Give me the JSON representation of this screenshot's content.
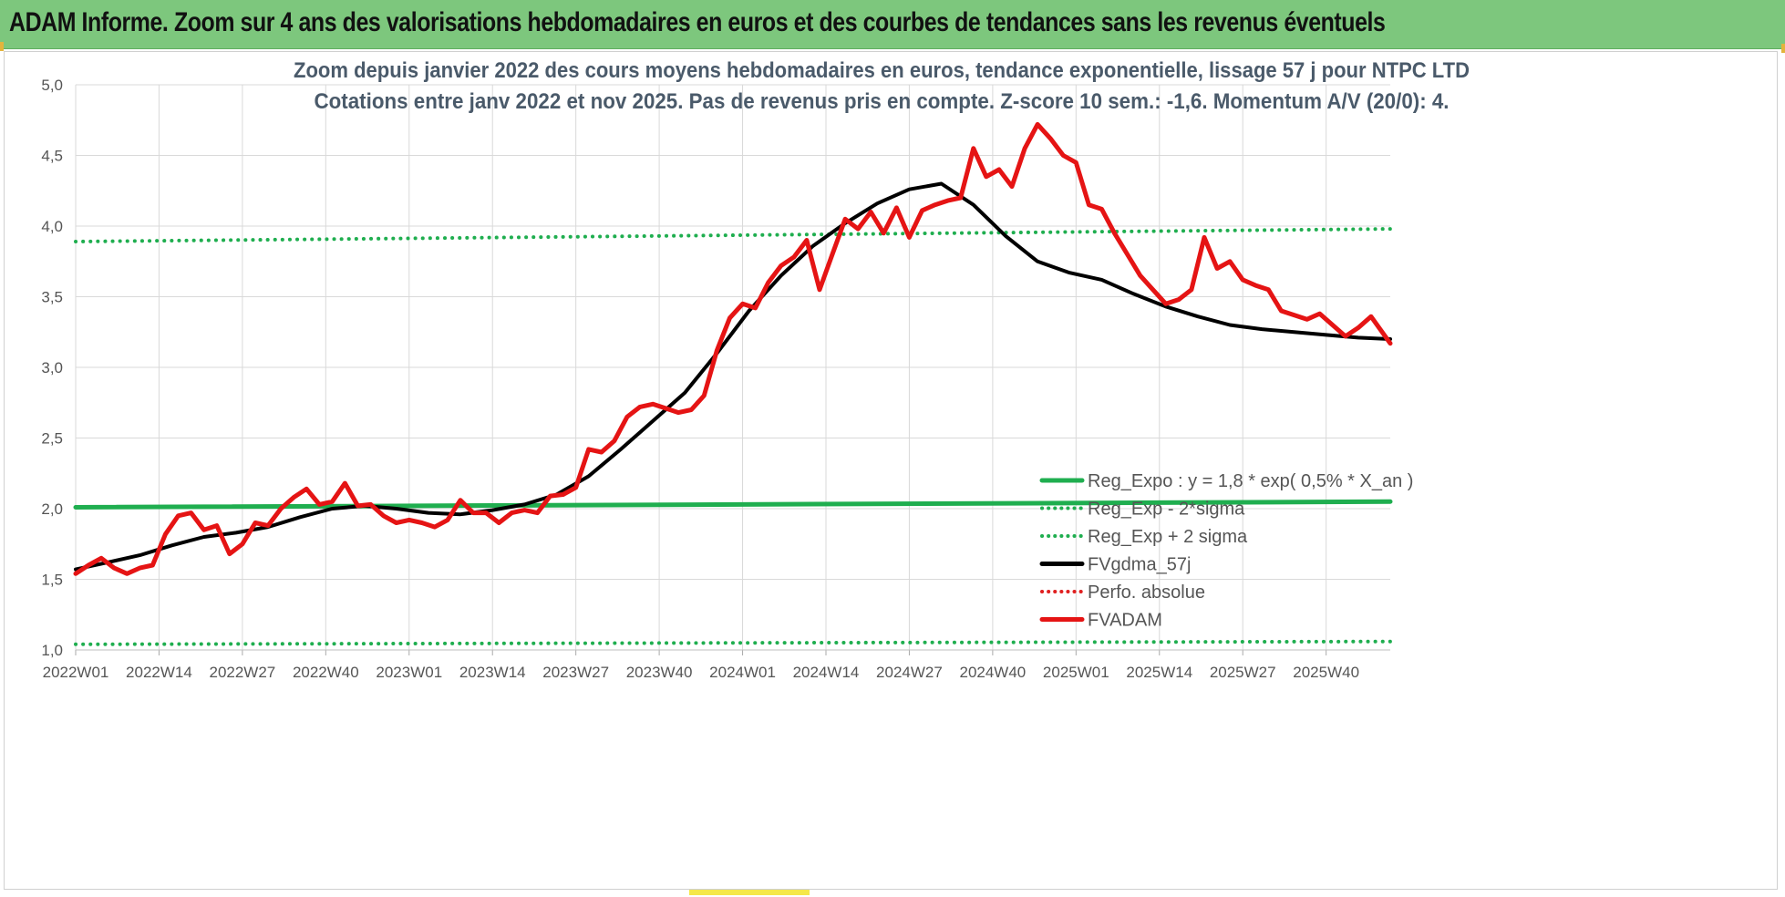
{
  "header": {
    "title": "ADAM Informe. Zoom sur 4 ans des valorisations hebdomadaires en euros et des courbes de tendances sans les revenus éventuels"
  },
  "colors": {
    "banner": "#7dc77d",
    "reg_expo": "#1fae4f",
    "reg_sigma": "#1fae4f",
    "fvgdma": "#000000",
    "perfo": "#e02020",
    "fvadam": "#e51414",
    "grid": "#d9d9d9"
  },
  "chart_data": {
    "type": "line",
    "title": "Zoom depuis janvier 2022 des cours moyens hebdomadaires en euros, tendance exponentielle, lissage 57 j pour NTPC LTD",
    "subtitle": "Cotations entre janv 2022 et nov 2025. Pas de revenus pris en compte. Z-score 10 sem.: -1,6. Momentum A/V (20/0): 4.",
    "xlabel": "",
    "ylabel": "",
    "ylim": [
      1.0,
      5.0
    ],
    "y_ticks": [
      "1,0",
      "1,5",
      "2,0",
      "2,5",
      "3,0",
      "3,5",
      "4,0",
      "4,5",
      "5,0"
    ],
    "x_ticks": [
      "2022W01",
      "2022W14",
      "2022W27",
      "2022W40",
      "2023W01",
      "2023W14",
      "2023W27",
      "2023W40",
      "2024W01",
      "2024W14",
      "2024W27",
      "2024W40",
      "2025W01",
      "2025W14",
      "2025W27",
      "2025W40"
    ],
    "x_range_weeks": [
      0,
      205
    ],
    "grid": true,
    "legend": [
      {
        "name": "Reg_Expo : y = 1,8 * exp( 0,5% *  X_an )",
        "style": "solid",
        "color": "#1fae4f"
      },
      {
        "name": "Reg_Exp - 2*sigma",
        "style": "dotted",
        "color": "#1fae4f"
      },
      {
        "name": "Reg_Exp + 2 sigma",
        "style": "dotted",
        "color": "#1fae4f"
      },
      {
        "name": "FVgdma_57j",
        "style": "solid",
        "color": "#000000"
      },
      {
        "name": "Perfo. absolue",
        "style": "dotted",
        "color": "#e02020"
      },
      {
        "name": "FVADAM",
        "style": "solid",
        "color": "#e51414"
      }
    ],
    "series": [
      {
        "name": "Reg_Expo",
        "x": [
          0,
          205
        ],
        "values": [
          2.01,
          2.05
        ]
      },
      {
        "name": "Reg_Exp - 2*sigma",
        "x": [
          0,
          205
        ],
        "values": [
          1.04,
          1.06
        ]
      },
      {
        "name": "Reg_Exp + 2 sigma",
        "x": [
          0,
          205
        ],
        "values": [
          3.89,
          3.98
        ]
      },
      {
        "name": "FVgdma_57j",
        "x": [
          0,
          5,
          10,
          15,
          20,
          25,
          30,
          35,
          40,
          45,
          50,
          55,
          60,
          65,
          70,
          75,
          80,
          85,
          90,
          95,
          100,
          105,
          110,
          115,
          120,
          125,
          130,
          135,
          140,
          145,
          150,
          155,
          160,
          165,
          170,
          175,
          180,
          185,
          190,
          195,
          200,
          205
        ],
        "values": [
          1.57,
          1.62,
          1.67,
          1.74,
          1.8,
          1.83,
          1.87,
          1.94,
          2.0,
          2.02,
          2.0,
          1.97,
          1.96,
          1.99,
          2.03,
          2.1,
          2.23,
          2.42,
          2.62,
          2.82,
          3.1,
          3.4,
          3.65,
          3.86,
          4.02,
          4.16,
          4.26,
          4.3,
          4.15,
          3.93,
          3.75,
          3.67,
          3.62,
          3.52,
          3.43,
          3.36,
          3.3,
          3.27,
          3.25,
          3.23,
          3.21,
          3.2
        ]
      },
      {
        "name": "FVADAM",
        "x": [
          0,
          2,
          4,
          6,
          8,
          10,
          12,
          14,
          16,
          18,
          20,
          22,
          24,
          26,
          28,
          30,
          32,
          34,
          36,
          38,
          40,
          42,
          44,
          46,
          48,
          50,
          52,
          54,
          56,
          58,
          60,
          62,
          64,
          66,
          68,
          70,
          72,
          74,
          76,
          78,
          80,
          82,
          84,
          86,
          88,
          90,
          92,
          94,
          96,
          98,
          100,
          102,
          104,
          106,
          108,
          110,
          112,
          114,
          116,
          118,
          120,
          122,
          124,
          126,
          128,
          130,
          132,
          134,
          136,
          138,
          140,
          142,
          144,
          146,
          148,
          150,
          152,
          154,
          156,
          158,
          160,
          162,
          164,
          166,
          168,
          170,
          172,
          174,
          176,
          178,
          180,
          182,
          184,
          186,
          188,
          190,
          192,
          194,
          196,
          198,
          200,
          202,
          205
        ],
        "values": [
          1.54,
          1.6,
          1.65,
          1.58,
          1.54,
          1.58,
          1.6,
          1.82,
          1.95,
          1.97,
          1.85,
          1.88,
          1.68,
          1.75,
          1.9,
          1.88,
          2.0,
          2.08,
          2.14,
          2.03,
          2.05,
          2.18,
          2.02,
          2.03,
          1.95,
          1.9,
          1.92,
          1.9,
          1.87,
          1.92,
          2.06,
          1.97,
          1.97,
          1.9,
          1.97,
          1.99,
          1.97,
          2.09,
          2.1,
          2.15,
          2.42,
          2.4,
          2.48,
          2.65,
          2.72,
          2.74,
          2.71,
          2.68,
          2.7,
          2.8,
          3.12,
          3.35,
          3.45,
          3.42,
          3.6,
          3.72,
          3.78,
          3.9,
          3.55,
          3.8,
          4.05,
          3.98,
          4.1,
          3.95,
          4.13,
          3.92,
          4.11,
          4.15,
          4.18,
          4.2,
          4.55,
          4.35,
          4.4,
          4.28,
          4.55,
          4.72,
          4.62,
          4.5,
          4.45,
          4.15,
          4.12,
          3.95,
          3.8,
          3.65,
          3.55,
          3.45,
          3.48,
          3.55,
          3.92,
          3.7,
          3.75,
          3.62,
          3.58,
          3.55,
          3.4,
          3.37,
          3.34,
          3.38,
          3.3,
          3.22,
          3.28,
          3.36,
          3.17
        ]
      }
    ]
  }
}
